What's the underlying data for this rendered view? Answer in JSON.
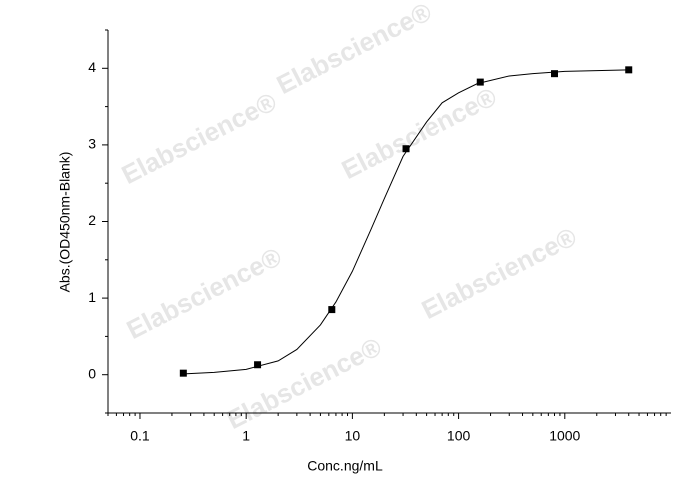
{
  "chart_data": {
    "type": "scatter",
    "xlabel": "Conc.ng/mL",
    "ylabel": "Abs.(OD450nm-Blank)",
    "watermark": "Elabscience®",
    "xscale": "log",
    "xlim": [
      0.05,
      10000
    ],
    "xticks": [
      0.1,
      1,
      10,
      100,
      1000
    ],
    "xminorticks": [
      0.05,
      0.06,
      0.07,
      0.08,
      0.09,
      0.2,
      0.3,
      0.4,
      0.5,
      0.6,
      0.7,
      0.8,
      0.9,
      2,
      3,
      4,
      5,
      6,
      7,
      8,
      9,
      20,
      30,
      40,
      50,
      60,
      70,
      80,
      90,
      200,
      300,
      400,
      500,
      600,
      700,
      800,
      900,
      2000,
      3000,
      4000,
      5000,
      6000,
      7000,
      8000,
      9000
    ],
    "ylim": [
      -0.5,
      4.5
    ],
    "yticks": [
      0,
      1,
      2,
      3,
      4
    ],
    "yminorticks": [
      -0.5,
      0.5,
      1.5,
      2.5,
      3.5,
      4.5
    ],
    "series": [
      {
        "type": "line",
        "color": "#000000",
        "x": [
          0.26,
          0.5,
          1,
          2,
          3,
          5,
          7,
          10,
          15,
          20,
          30,
          50,
          70,
          100,
          150,
          300,
          500,
          1000,
          4000
        ],
        "values": [
          0.01,
          0.03,
          0.07,
          0.18,
          0.33,
          0.65,
          0.95,
          1.35,
          1.9,
          2.3,
          2.85,
          3.3,
          3.55,
          3.68,
          3.8,
          3.9,
          3.93,
          3.96,
          3.98
        ]
      },
      {
        "type": "scatter",
        "color": "#000000",
        "x": [
          0.256,
          1.28,
          6.4,
          32,
          160,
          800,
          4000
        ],
        "values": [
          0.02,
          0.13,
          0.85,
          2.95,
          3.82,
          3.93,
          3.98
        ]
      }
    ]
  }
}
